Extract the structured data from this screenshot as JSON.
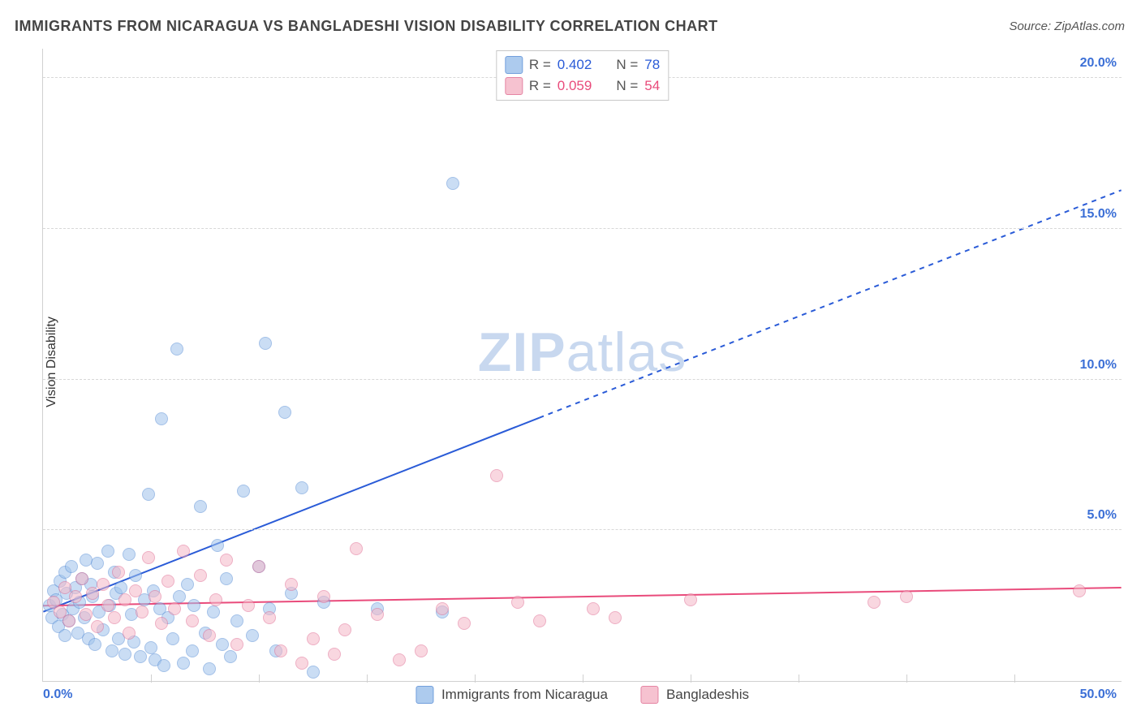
{
  "title": "IMMIGRANTS FROM NICARAGUA VS BANGLADESHI VISION DISABILITY CORRELATION CHART",
  "source": "Source: ZipAtlas.com",
  "ylabel": "Vision Disability",
  "watermark_a": "ZIP",
  "watermark_b": "atlas",
  "watermark_color": "#c8d8ef",
  "chart": {
    "type": "scatter",
    "xlim": [
      0,
      50
    ],
    "ylim": [
      0,
      21
    ],
    "xtick_step": 5,
    "xlabel_min": "0.0%",
    "xlabel_max": "50.0%",
    "yticks": [
      {
        "v": 5,
        "label": "5.0%"
      },
      {
        "v": 10,
        "label": "10.0%"
      },
      {
        "v": 15,
        "label": "15.0%"
      },
      {
        "v": 20,
        "label": "20.0%"
      }
    ],
    "grid_color": "#d8d8d8",
    "axis_color": "#d0d0d0",
    "background": "#ffffff",
    "tick_label_color": "#3b6fd6",
    "marker_radius": 8,
    "series": [
      {
        "name": "Immigrants from Nicaragua",
        "fill": "#9fc3ec",
        "fill_opacity": 0.55,
        "stroke": "#5a8fd6",
        "R": "0.402",
        "N": "78",
        "trend": {
          "y0": 2.3,
          "slope": 0.28,
          "solid_xmax": 23,
          "dashed_xmax": 50,
          "color": "#2a5bd7",
          "width": 2
        },
        "points": [
          [
            0.3,
            2.5
          ],
          [
            0.4,
            2.1
          ],
          [
            0.5,
            3.0
          ],
          [
            0.6,
            2.7
          ],
          [
            0.7,
            1.8
          ],
          [
            0.8,
            3.3
          ],
          [
            0.9,
            2.2
          ],
          [
            1.0,
            3.6
          ],
          [
            1.0,
            1.5
          ],
          [
            1.1,
            2.9
          ],
          [
            1.2,
            2.0
          ],
          [
            1.3,
            3.8
          ],
          [
            1.4,
            2.4
          ],
          [
            1.5,
            3.1
          ],
          [
            1.6,
            1.6
          ],
          [
            1.7,
            2.6
          ],
          [
            1.8,
            3.4
          ],
          [
            1.9,
            2.1
          ],
          [
            2.0,
            4.0
          ],
          [
            2.1,
            1.4
          ],
          [
            2.2,
            3.2
          ],
          [
            2.3,
            2.8
          ],
          [
            2.4,
            1.2
          ],
          [
            2.5,
            3.9
          ],
          [
            2.6,
            2.3
          ],
          [
            2.8,
            1.7
          ],
          [
            3.0,
            4.3
          ],
          [
            3.1,
            2.5
          ],
          [
            3.2,
            1.0
          ],
          [
            3.3,
            3.6
          ],
          [
            3.4,
            2.9
          ],
          [
            3.5,
            1.4
          ],
          [
            3.6,
            3.1
          ],
          [
            3.8,
            0.9
          ],
          [
            4.0,
            4.2
          ],
          [
            4.1,
            2.2
          ],
          [
            4.2,
            1.3
          ],
          [
            4.3,
            3.5
          ],
          [
            4.5,
            0.8
          ],
          [
            4.7,
            2.7
          ],
          [
            4.9,
            6.2
          ],
          [
            5.0,
            1.1
          ],
          [
            5.1,
            3.0
          ],
          [
            5.2,
            0.7
          ],
          [
            5.4,
            2.4
          ],
          [
            5.5,
            8.7
          ],
          [
            5.6,
            0.5
          ],
          [
            5.8,
            2.1
          ],
          [
            6.0,
            1.4
          ],
          [
            6.2,
            11.0
          ],
          [
            6.3,
            2.8
          ],
          [
            6.5,
            0.6
          ],
          [
            6.7,
            3.2
          ],
          [
            6.9,
            1.0
          ],
          [
            7.0,
            2.5
          ],
          [
            7.3,
            5.8
          ],
          [
            7.5,
            1.6
          ],
          [
            7.7,
            0.4
          ],
          [
            7.9,
            2.3
          ],
          [
            8.1,
            4.5
          ],
          [
            8.3,
            1.2
          ],
          [
            8.5,
            3.4
          ],
          [
            8.7,
            0.8
          ],
          [
            9.0,
            2.0
          ],
          [
            9.3,
            6.3
          ],
          [
            9.7,
            1.5
          ],
          [
            10.0,
            3.8
          ],
          [
            10.3,
            11.2
          ],
          [
            10.5,
            2.4
          ],
          [
            10.8,
            1.0
          ],
          [
            11.2,
            8.9
          ],
          [
            11.5,
            2.9
          ],
          [
            12.0,
            6.4
          ],
          [
            12.5,
            0.3
          ],
          [
            13.0,
            2.6
          ],
          [
            15.5,
            2.4
          ],
          [
            18.5,
            2.3
          ],
          [
            19.0,
            16.5
          ]
        ]
      },
      {
        "name": "Bangladeshis",
        "fill": "#f5b8c8",
        "fill_opacity": 0.55,
        "stroke": "#e16f94",
        "R": "0.059",
        "N": "54",
        "trend": {
          "y0": 2.5,
          "slope": 0.012,
          "solid_xmax": 50,
          "dashed_xmax": 50,
          "color": "#e94b7b",
          "width": 2
        },
        "points": [
          [
            0.5,
            2.6
          ],
          [
            0.8,
            2.3
          ],
          [
            1.0,
            3.1
          ],
          [
            1.2,
            2.0
          ],
          [
            1.5,
            2.8
          ],
          [
            1.8,
            3.4
          ],
          [
            2.0,
            2.2
          ],
          [
            2.3,
            2.9
          ],
          [
            2.5,
            1.8
          ],
          [
            2.8,
            3.2
          ],
          [
            3.0,
            2.5
          ],
          [
            3.3,
            2.1
          ],
          [
            3.5,
            3.6
          ],
          [
            3.8,
            2.7
          ],
          [
            4.0,
            1.6
          ],
          [
            4.3,
            3.0
          ],
          [
            4.6,
            2.3
          ],
          [
            4.9,
            4.1
          ],
          [
            5.2,
            2.8
          ],
          [
            5.5,
            1.9
          ],
          [
            5.8,
            3.3
          ],
          [
            6.1,
            2.4
          ],
          [
            6.5,
            4.3
          ],
          [
            6.9,
            2.0
          ],
          [
            7.3,
            3.5
          ],
          [
            7.7,
            1.5
          ],
          [
            8.0,
            2.7
          ],
          [
            8.5,
            4.0
          ],
          [
            9.0,
            1.2
          ],
          [
            9.5,
            2.5
          ],
          [
            10.0,
            3.8
          ],
          [
            10.5,
            2.1
          ],
          [
            11.0,
            1.0
          ],
          [
            11.5,
            3.2
          ],
          [
            12.0,
            0.6
          ],
          [
            12.5,
            1.4
          ],
          [
            13.0,
            2.8
          ],
          [
            13.5,
            0.9
          ],
          [
            14.0,
            1.7
          ],
          [
            14.5,
            4.4
          ],
          [
            15.5,
            2.2
          ],
          [
            16.5,
            0.7
          ],
          [
            17.5,
            1.0
          ],
          [
            18.5,
            2.4
          ],
          [
            19.5,
            1.9
          ],
          [
            21.0,
            6.8
          ],
          [
            22.0,
            2.6
          ],
          [
            23.0,
            2.0
          ],
          [
            25.5,
            2.4
          ],
          [
            26.5,
            2.1
          ],
          [
            30.0,
            2.7
          ],
          [
            38.5,
            2.6
          ],
          [
            40.0,
            2.8
          ],
          [
            48.0,
            3.0
          ]
        ]
      }
    ]
  },
  "corr_legend": {
    "r_label": "R =",
    "n_label": "N ="
  },
  "bottom_legend_items": [
    "Immigrants from Nicaragua",
    "Bangladeshis"
  ]
}
